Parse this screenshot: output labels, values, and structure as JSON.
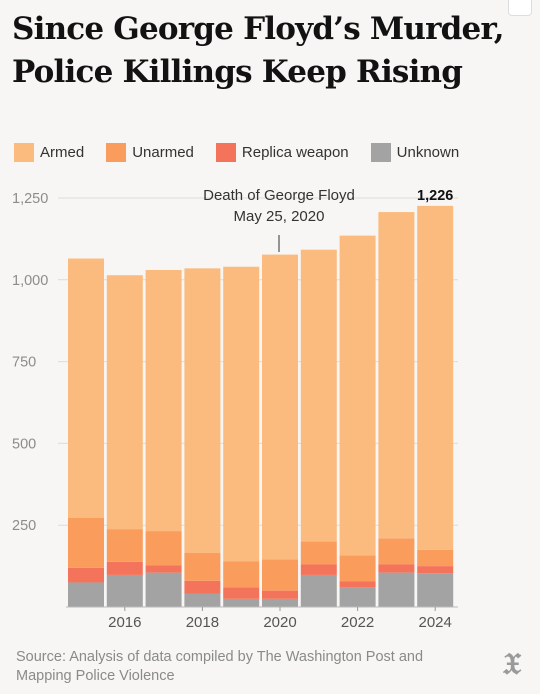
{
  "headline": "Since George Floyd’s Murder, Police Killings Keep Rising",
  "legend": [
    {
      "label": "Armed",
      "color": "#fbbb7f"
    },
    {
      "label": "Unarmed",
      "color": "#fa9c5c"
    },
    {
      "label": "Replica weapon",
      "color": "#f4735b"
    },
    {
      "label": "Unknown",
      "color": "#a3a3a3"
    }
  ],
  "source": "Source: Analysis of data compiled by The Washington Post and Mapping Police Violence",
  "logo_icon": "nyt-logo-icon",
  "chart_data": {
    "type": "bar",
    "stacked": true,
    "categories": [
      "2015",
      "2016",
      "2017",
      "2018",
      "2019",
      "2020",
      "2021",
      "2022",
      "2023",
      "2024"
    ],
    "x_tick_labels": [
      "2016",
      "2018",
      "2020",
      "2022",
      "2024"
    ],
    "series": [
      {
        "name": "Unknown",
        "color": "#a3a3a3",
        "values": [
          75,
          98,
          105,
          40,
          25,
          25,
          98,
          60,
          105,
          103
        ]
      },
      {
        "name": "Replica weapon",
        "color": "#f4735b",
        "values": [
          45,
          40,
          22,
          40,
          35,
          25,
          32,
          18,
          25,
          22
        ]
      },
      {
        "name": "Unarmed",
        "color": "#fa9c5c",
        "values": [
          152,
          100,
          105,
          85,
          80,
          95,
          70,
          80,
          80,
          50
        ]
      },
      {
        "name": "Armed",
        "color": "#fbbb7f",
        "values": [
          793,
          776,
          798,
          870,
          900,
          932,
          892,
          977,
          997,
          1051
        ]
      }
    ],
    "ylim": [
      0,
      1250
    ],
    "yticks": [
      250,
      500,
      750,
      1000,
      1250
    ],
    "ytick_labels": [
      "250",
      "500",
      "750",
      "1,000",
      "1,250"
    ],
    "grid": true,
    "annotations": [
      {
        "text": "Death of George Floyd",
        "category": "2020"
      },
      {
        "text": "May 25, 2020",
        "category": "2020"
      },
      {
        "text": "1,226",
        "category": "2024",
        "bold": true
      }
    ]
  }
}
